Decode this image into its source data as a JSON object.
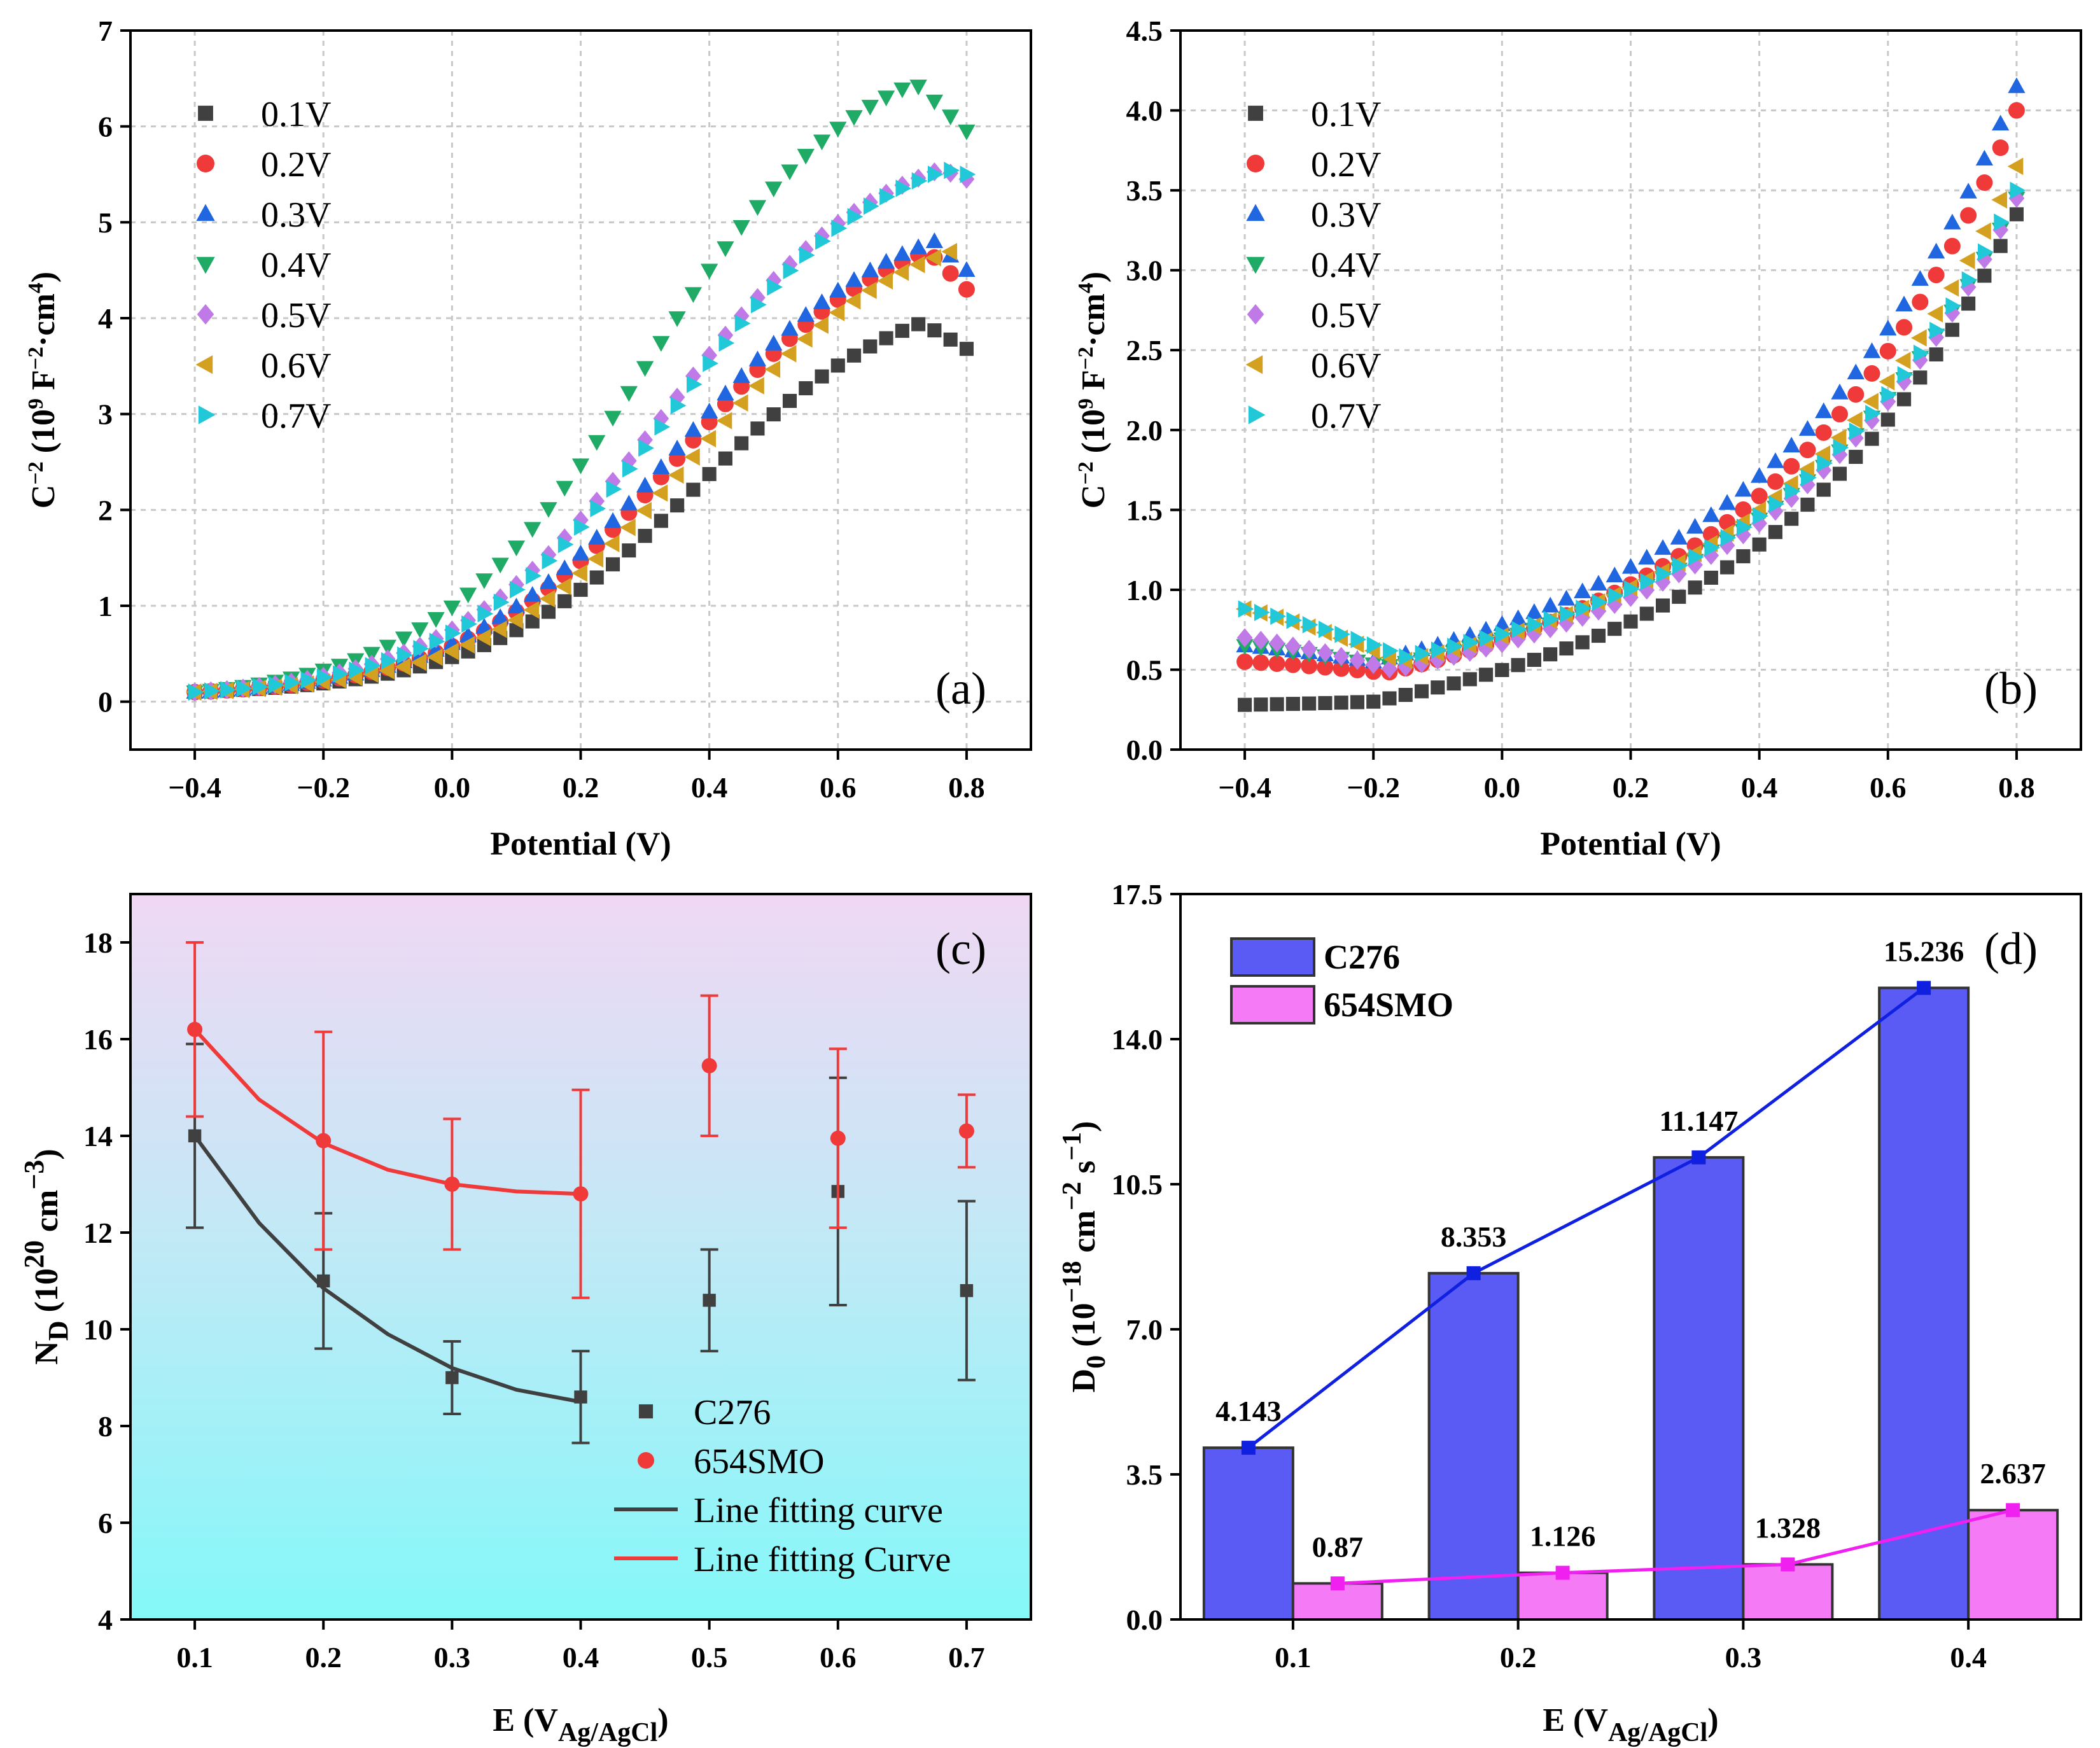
{
  "colors": {
    "0.1V": "#404040",
    "0.2V": "#f03a3a",
    "0.3V": "#1f66e0",
    "0.4V": "#1faa66",
    "0.5V": "#c07ae8",
    "0.6V": "#d4a020",
    "0.7V": "#20c8d8",
    "C276": "#404040",
    "654SMO": "#f03a3a",
    "bar_C276": "#5a5af5",
    "bar_654SMO": "#f57af5",
    "line_C276": "#1020e0",
    "line_654SMO": "#f020f0"
  },
  "chart_data": [
    {
      "id": "a",
      "panel_label": "(a)",
      "type": "scatter",
      "xlabel": "Potential (V)",
      "ylabel_main": "C",
      "ylabel_sup": "−2",
      "ylabel_rest": " (10",
      "ylabel_sup2": "9",
      "ylabel_end": " F",
      "ylabel_sup3": "−2",
      "ylabel_end2": "·cm",
      "ylabel_sup4": "4",
      "ylabel_close": ")",
      "xlim": [
        -0.5,
        0.9
      ],
      "ylim": [
        -0.5,
        7
      ],
      "xticks": [
        -0.4,
        -0.2,
        0.0,
        0.2,
        0.4,
        0.6,
        0.8
      ],
      "xtick_labels": [
        "−0.4",
        "−0.2",
        "0.0",
        "0.2",
        "0.4",
        "0.6",
        "0.8"
      ],
      "yticks": [
        0,
        1,
        2,
        3,
        4,
        5,
        6,
        7
      ],
      "ytick_labels": [
        "0",
        "1",
        "2",
        "3",
        "4",
        "5",
        "6",
        "7"
      ],
      "series": [
        {
          "name": "0.1V",
          "marker": "square",
          "x0": 0.0,
          "k": 6.0,
          "ymax": 3.95,
          "base": 0.1,
          "peak": 0.73,
          "end": 3.68
        },
        {
          "name": "0.2V",
          "marker": "circle",
          "x0": -0.02,
          "k": 6.0,
          "ymax": 4.7,
          "base": 0.1,
          "peak": 0.74,
          "end": 4.3
        },
        {
          "name": "0.3V",
          "marker": "triangle-up",
          "x0": -0.03,
          "k": 6.0,
          "ymax": 4.8,
          "base": 0.1,
          "peak": 0.75,
          "end": 4.5
        },
        {
          "name": "0.4V",
          "marker": "triangle-down",
          "x0": -0.08,
          "k": 6.0,
          "ymax": 6.45,
          "base": 0.1,
          "peak": 0.72,
          "end": 5.95
        },
        {
          "name": "0.5V",
          "marker": "diamond",
          "x0": -0.05,
          "k": 6.0,
          "ymax": 5.55,
          "base": 0.1,
          "peak": 0.76,
          "end": 5.45
        },
        {
          "name": "0.6V",
          "marker": "triangle-left",
          "x0": 0.0,
          "k": 6.0,
          "ymax": 4.75,
          "base": 0.1,
          "peak": 0.8,
          "end": 4.75
        },
        {
          "name": "0.7V",
          "marker": "triangle-right",
          "x0": -0.04,
          "k": 6.0,
          "ymax": 5.55,
          "base": 0.1,
          "peak": 0.77,
          "end": 5.5
        }
      ],
      "legend": [
        "0.1V",
        "0.2V",
        "0.3V",
        "0.4V",
        "0.5V",
        "0.6V",
        "0.7V"
      ]
    },
    {
      "id": "b",
      "panel_label": "(b)",
      "type": "scatter",
      "xlabel": "Potential (V)",
      "ylabel_main": "C",
      "ylabel_sup": "−2",
      "ylabel_rest": " (10",
      "ylabel_sup2": "9",
      "ylabel_end": " F",
      "ylabel_sup3": "−2",
      "ylabel_end2": "·cm",
      "ylabel_sup4": "4",
      "ylabel_close": ")",
      "xlim": [
        -0.5,
        0.9
      ],
      "ylim": [
        0,
        4.5
      ],
      "xticks": [
        -0.4,
        -0.2,
        0.0,
        0.2,
        0.4,
        0.6,
        0.8
      ],
      "xtick_labels": [
        "−0.4",
        "−0.2",
        "0.0",
        "0.2",
        "0.4",
        "0.6",
        "0.8"
      ],
      "yticks": [
        0,
        0.5,
        1.0,
        1.5,
        2.0,
        2.5,
        3.0,
        3.5,
        4.0,
        4.5
      ],
      "ytick_labels": [
        "0.0",
        "0.5",
        "1.0",
        "1.5",
        "2.0",
        "2.5",
        "3.0",
        "3.5",
        "4.0",
        "4.5"
      ],
      "series": [
        {
          "name": "0.1V",
          "marker": "square",
          "start": 0.28,
          "min": 0.3,
          "xmin": -0.2,
          "end": 3.35
        },
        {
          "name": "0.2V",
          "marker": "circle",
          "start": 0.55,
          "min": 0.48,
          "xmin": -0.18,
          "end": 4.0
        },
        {
          "name": "0.3V",
          "marker": "triangle-up",
          "start": 0.65,
          "min": 0.55,
          "xmin": -0.2,
          "end": 4.15
        },
        {
          "name": "0.4V",
          "marker": "triangle-down",
          "start": 0.65,
          "min": 0.52,
          "xmin": -0.18,
          "end": 3.45
        },
        {
          "name": "0.5V",
          "marker": "diamond",
          "start": 0.7,
          "min": 0.5,
          "xmin": -0.17,
          "end": 3.45
        },
        {
          "name": "0.6V",
          "marker": "triangle-left",
          "start": 0.88,
          "min": 0.55,
          "xmin": -0.16,
          "end": 3.65
        },
        {
          "name": "0.7V",
          "marker": "triangle-right",
          "start": 0.88,
          "min": 0.58,
          "xmin": -0.15,
          "end": 3.5
        }
      ],
      "legend": [
        "0.1V",
        "0.2V",
        "0.3V",
        "0.4V",
        "0.5V",
        "0.6V",
        "0.7V"
      ]
    },
    {
      "id": "c",
      "panel_label": "(c)",
      "type": "scatter",
      "xlabel": "E (V",
      "xlabel_sub": "Ag/AgCl",
      "xlabel_close": ")",
      "ylabel_main": "N",
      "ylabel_sub": "D",
      "ylabel_rest": " (10",
      "ylabel_sup": "20",
      "ylabel_end": " cm",
      "ylabel_sup2": "−3",
      "ylabel_close": ")",
      "xlim": [
        0.05,
        0.75
      ],
      "ylim": [
        4,
        19
      ],
      "xticks": [
        0.1,
        0.2,
        0.3,
        0.4,
        0.5,
        0.6,
        0.7
      ],
      "xtick_labels": [
        "0.1",
        "0.2",
        "0.3",
        "0.4",
        "0.5",
        "0.6",
        "0.7"
      ],
      "yticks": [
        4,
        6,
        8,
        10,
        12,
        14,
        16,
        18
      ],
      "ytick_labels": [
        "4",
        "6",
        "8",
        "10",
        "12",
        "14",
        "16",
        "18"
      ],
      "series": [
        {
          "name": "C276",
          "marker": "square",
          "x": [
            0.1,
            0.2,
            0.3,
            0.4,
            0.5,
            0.6,
            0.7
          ],
          "y": [
            14.0,
            11.0,
            9.0,
            8.6,
            10.6,
            12.85,
            10.8
          ],
          "err": [
            1.9,
            1.4,
            0.75,
            0.95,
            1.05,
            2.35,
            1.85
          ]
        },
        {
          "name": "654SMO",
          "marker": "circle",
          "x": [
            0.1,
            0.2,
            0.3,
            0.4,
            0.5,
            0.6,
            0.7
          ],
          "y": [
            16.2,
            13.9,
            13.0,
            12.8,
            15.45,
            13.95,
            14.1
          ],
          "err": [
            1.8,
            2.25,
            1.35,
            2.15,
            1.45,
            1.85,
            0.75
          ]
        }
      ],
      "fits": [
        {
          "name": "Line fitting curve",
          "color_key": "C276",
          "x": [
            0.1,
            0.15,
            0.2,
            0.25,
            0.3,
            0.35,
            0.4
          ],
          "y": [
            14.0,
            12.2,
            10.85,
            9.9,
            9.2,
            8.75,
            8.5
          ]
        },
        {
          "name": "Line fitting Curve",
          "color_key": "654SMO",
          "x": [
            0.1,
            0.15,
            0.2,
            0.25,
            0.3,
            0.35,
            0.4
          ],
          "y": [
            16.2,
            14.75,
            13.85,
            13.3,
            13.0,
            12.85,
            12.8
          ]
        }
      ],
      "legend": [
        "C276",
        "654SMO",
        "Line fitting curve",
        "Line fitting Curve"
      ]
    },
    {
      "id": "d",
      "panel_label": "(d)",
      "type": "bar",
      "xlabel": "E (V",
      "xlabel_sub": "Ag/AgCl",
      "xlabel_close": ")",
      "ylabel_main": "D",
      "ylabel_sub": "0",
      "ylabel_rest": " (10",
      "ylabel_sup": "−18",
      "ylabel_end": " cm",
      "ylabel_sup2": "−2",
      "ylabel_end2": " s",
      "ylabel_sup3": "−1",
      "ylabel_close": ")",
      "ylim": [
        0,
        17.5
      ],
      "categories": [
        "0.1",
        "0.2",
        "0.3",
        "0.4"
      ],
      "yticks": [
        0,
        3.5,
        7.0,
        10.5,
        14.0,
        17.5
      ],
      "ytick_labels": [
        "0.0",
        "3.5",
        "7.0",
        "10.5",
        "14.0",
        "17.5"
      ],
      "series": [
        {
          "name": "C276",
          "values": [
            4.143,
            8.353,
            11.147,
            15.236
          ],
          "labels": [
            "4.143",
            "8.353",
            "11.147",
            "15.236"
          ]
        },
        {
          "name": "654SMO",
          "values": [
            0.87,
            1.126,
            1.328,
            2.637
          ],
          "labels": [
            "0.87",
            "1.126",
            "1.328",
            "2.637"
          ]
        }
      ],
      "legend": [
        "C276",
        "654SMO"
      ]
    }
  ]
}
